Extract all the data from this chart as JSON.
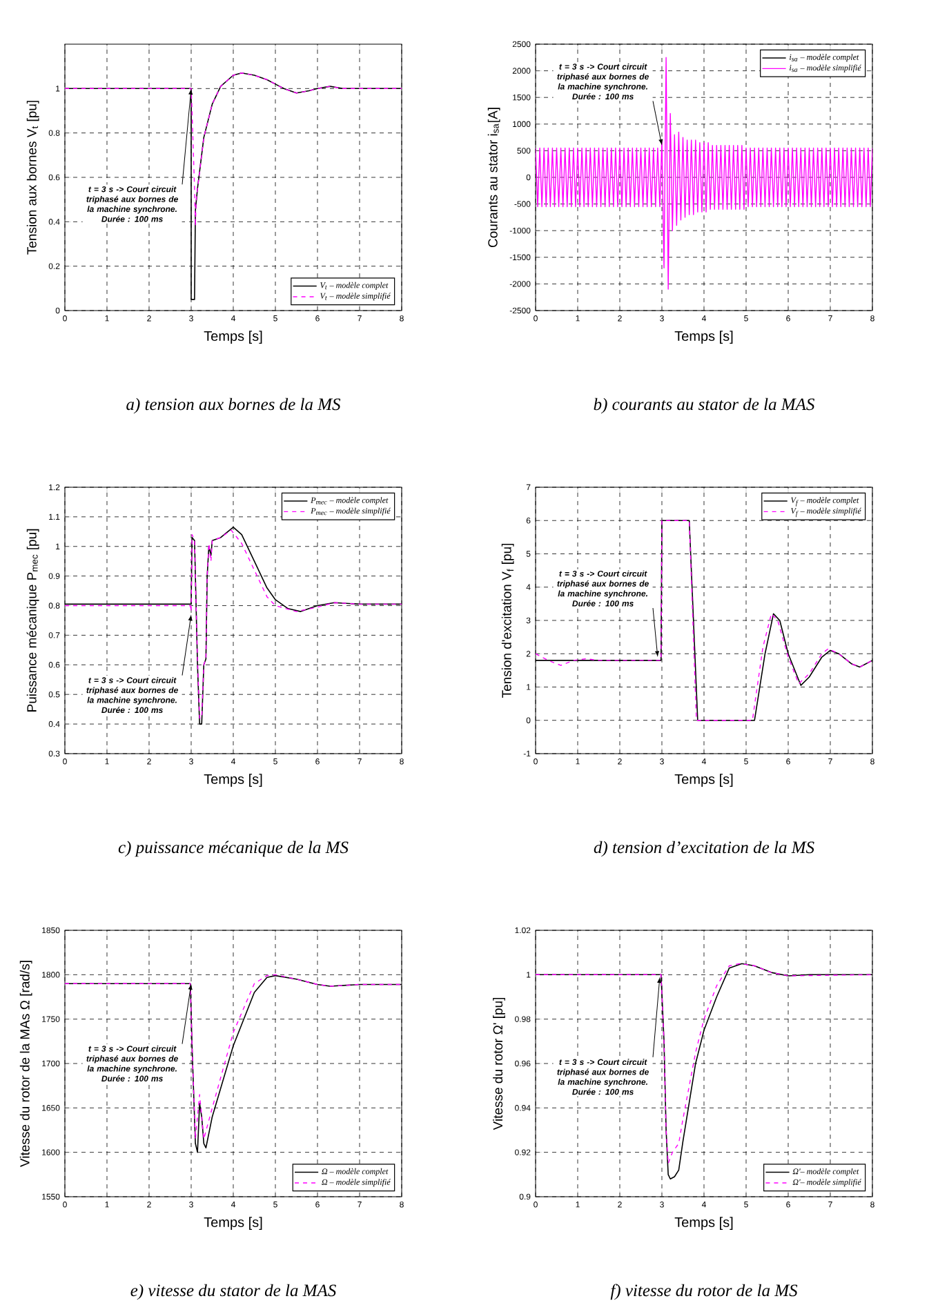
{
  "chart_data": [
    {
      "type": "line",
      "title": "a) tension aux bornes de la MS",
      "xlabel": "Temps  [s]",
      "ylabel": "Tension aux bornes  V$_{t}$ [pu]",
      "xlim": [
        0,
        8
      ],
      "xticks": [
        0,
        1,
        2,
        3,
        4,
        5,
        6,
        7,
        8
      ],
      "ylim": [
        0,
        1.2
      ],
      "yticks": [
        0,
        0.2,
        0.4,
        0.6,
        0.8,
        1
      ],
      "grid": true,
      "legend": "bottom right",
      "annotations": [
        {
          "text": "t = 3 s -> Court circuit triphasé aux bornes de la machine synchrone. Durée : 100 ms",
          "x": 3,
          "y": 1
        }
      ],
      "series": [
        {
          "name": "V$_{t}$ – modèle complet",
          "color": "#000000",
          "line_style": "solid",
          "x": [
            0,
            1,
            2,
            2.98,
            3.0,
            3.0,
            3.08,
            3.1,
            3.15,
            3.3,
            3.5,
            3.7,
            4.0,
            4.2,
            4.5,
            4.8,
            5.0,
            5.2,
            5.5,
            5.8,
            6.0,
            6.3,
            6.6,
            7,
            8
          ],
          "values": [
            1,
            1,
            1,
            1,
            1,
            0.05,
            0.05,
            0.45,
            0.55,
            0.78,
            0.93,
            1.01,
            1.06,
            1.07,
            1.06,
            1.04,
            1.02,
            1.0,
            0.98,
            0.99,
            1.0,
            1.01,
            1.0,
            1.0,
            1.0
          ]
        },
        {
          "name": "V$_{t}$ – modèle simplifié",
          "color": "#ff00ff",
          "line_style": "dashed",
          "x": [
            0,
            1,
            2,
            2.98,
            3.0,
            3.02,
            3.08,
            3.1,
            3.12,
            3.3,
            3.5,
            3.7,
            4.0,
            4.2,
            4.5,
            4.8,
            5.0,
            5.2,
            5.5,
            5.8,
            6.0,
            6.3,
            6.6,
            7,
            8
          ],
          "values": [
            1,
            1,
            1,
            1,
            1,
            0.9,
            0.55,
            0.38,
            0.5,
            0.78,
            0.93,
            1.01,
            1.06,
            1.07,
            1.06,
            1.04,
            1.02,
            1.0,
            0.98,
            0.99,
            1.0,
            1.01,
            1.0,
            1.0,
            1.0
          ]
        }
      ]
    },
    {
      "type": "line",
      "title": "b) courants au stator de la MAS",
      "xlabel": "Temps  [s]",
      "ylabel": "Courants au stator i$_{sa}$[A]",
      "xlim": [
        0,
        8
      ],
      "xticks": [
        0,
        1,
        2,
        3,
        4,
        5,
        6,
        7,
        8
      ],
      "ylim": [
        -2500,
        2500
      ],
      "yticks": [
        -2500,
        -2000,
        -1500,
        -1000,
        -500,
        0,
        500,
        1000,
        1500,
        2000,
        2500
      ],
      "grid": true,
      "legend": "top right",
      "annotations": [
        {
          "text": "t = 3 s -> Court circuit triphasé aux bornes de la machine synchrone. Durée : 100 ms",
          "x": 3,
          "y": 600
        }
      ],
      "x": [
        0,
        0.05,
        0.1,
        0.15,
        0.2,
        0.25,
        0.3,
        0.35,
        0.4,
        0.45,
        0.5,
        0.55,
        0.6,
        0.65,
        0.7,
        0.75,
        0.8,
        0.85,
        0.9,
        0.95,
        1,
        1.05,
        1.1,
        1.15,
        1.2,
        1.25,
        1.3,
        1.35,
        1.4,
        1.45,
        1.5,
        1.55,
        1.6,
        1.65,
        1.7,
        1.75,
        1.8,
        1.85,
        1.9,
        1.95,
        2,
        2.05,
        2.1,
        2.15,
        2.2,
        2.25,
        2.3,
        2.35,
        2.4,
        2.45,
        2.5,
        2.55,
        2.6,
        2.65,
        2.7,
        2.75,
        2.8,
        2.85,
        2.9,
        2.95,
        3,
        3.05,
        3.1,
        3.15,
        3.2,
        3.25,
        3.3,
        3.35,
        3.4,
        3.45,
        3.5,
        3.55,
        3.6,
        3.65,
        3.7,
        3.75,
        3.8,
        3.85,
        3.9,
        3.95,
        4,
        4.05,
        4.1,
        4.15,
        4.2,
        4.25,
        4.3,
        4.35,
        4.4,
        4.45,
        4.5,
        4.55,
        4.6,
        4.65,
        4.7,
        4.75,
        4.8,
        4.85,
        4.9,
        4.95,
        5,
        5.05,
        5.1,
        5.15,
        5.2,
        5.25,
        5.3,
        5.35,
        5.4,
        5.45,
        5.5,
        5.55,
        5.6,
        5.65,
        5.7,
        5.75,
        5.8,
        5.85,
        5.9,
        5.95,
        6,
        6.05,
        6.1,
        6.15,
        6.2,
        6.25,
        6.3,
        6.35,
        6.4,
        6.45,
        6.5,
        6.55,
        6.6,
        6.65,
        6.7,
        6.75,
        6.8,
        6.85,
        6.9,
        6.95,
        7,
        7.05,
        7.1,
        7.15,
        7.2,
        7.25,
        7.3,
        7.35,
        7.4,
        7.45,
        7.5,
        7.55,
        7.6,
        7.65,
        7.7,
        7.75,
        7.8,
        7.85,
        7.9,
        7.95,
        8
      ],
      "series": [
        {
          "name": "i$_{sa}$ – modèle complet",
          "color": "#000000",
          "line_style": "solid",
          "values": [
            null,
            null,
            null,
            null,
            null,
            null,
            null,
            null,
            null,
            null,
            null,
            null,
            null,
            null,
            null,
            null,
            null,
            null,
            null,
            null,
            null,
            null,
            null,
            null,
            null,
            null,
            null,
            null,
            null,
            null,
            null,
            null,
            null,
            null,
            null,
            null,
            null,
            null,
            null,
            null,
            null,
            null,
            null,
            null,
            null,
            null,
            null,
            null,
            null,
            null,
            null,
            null,
            null,
            null,
            null,
            null,
            null,
            null,
            null,
            null,
            null,
            null,
            null,
            null,
            null,
            null,
            null,
            null,
            null,
            null,
            null,
            null,
            null,
            null,
            null,
            null,
            null,
            null,
            null,
            null,
            null,
            null,
            null,
            null,
            null,
            null,
            null,
            null,
            null,
            null,
            null,
            null,
            null,
            null,
            null,
            null,
            null,
            null,
            null,
            null,
            null,
            null,
            null,
            null,
            null,
            null,
            null,
            null,
            null,
            null,
            null,
            null,
            null,
            null,
            null,
            null,
            null,
            null,
            null,
            null,
            null,
            null,
            null,
            null,
            null,
            null,
            null,
            null,
            null,
            null,
            null,
            null,
            null,
            null,
            null,
            null,
            null,
            null,
            null,
            null,
            null,
            null,
            null,
            null,
            null,
            null,
            null,
            null,
            null,
            null,
            null,
            null,
            null,
            null,
            null,
            null,
            null,
            null,
            null,
            null,
            null
          ]
        },
        {
          "name": "i$_{sa}$ – modèle simplifié",
          "color": "#ff00ff",
          "line_style": "solid",
          "values": [
            550,
            -550,
            550,
            -550,
            550,
            -550,
            550,
            -550,
            550,
            -550,
            550,
            -550,
            550,
            -550,
            550,
            -550,
            550,
            -550,
            550,
            -550,
            550,
            -550,
            550,
            -550,
            550,
            -550,
            550,
            -550,
            550,
            -550,
            550,
            -550,
            550,
            -550,
            550,
            -550,
            550,
            -550,
            550,
            -550,
            550,
            -550,
            550,
            -550,
            550,
            -550,
            550,
            -550,
            550,
            -550,
            550,
            -550,
            550,
            -550,
            550,
            -550,
            550,
            -550,
            550,
            -550,
            700,
            -1700,
            2250,
            -2100,
            1200,
            -1000,
            800,
            -900,
            850,
            -800,
            750,
            -750,
            700,
            -700,
            700,
            -700,
            700,
            -650,
            650,
            -650,
            650,
            -650,
            650,
            -600,
            600,
            -600,
            600,
            -600,
            600,
            -600,
            600,
            -600,
            600,
            -600,
            600,
            -600,
            600,
            -600,
            600,
            -600,
            550,
            -550,
            550,
            -550,
            550,
            -550,
            550,
            -550,
            550,
            -550,
            550,
            -550,
            550,
            -550,
            550,
            -550,
            550,
            -550,
            550,
            -550,
            550,
            -550,
            550,
            -550,
            550,
            -550,
            550,
            -550,
            550,
            -550,
            550,
            -550,
            550,
            -550,
            550,
            -550,
            550,
            -550,
            550,
            -550,
            550,
            -550,
            550,
            -550,
            550,
            -550,
            550,
            -550,
            550,
            -550,
            550,
            -550,
            550,
            -550,
            550,
            -550,
            550,
            -550,
            550,
            -550,
            550
          ]
        }
      ]
    },
    {
      "type": "line",
      "title": "c) puissance mécanique de la MS",
      "xlabel": "Temps  [s]",
      "ylabel": "Puissance mécanique  P$_{mec}$ [pu]",
      "xlim": [
        0,
        8
      ],
      "xticks": [
        0,
        1,
        2,
        3,
        4,
        5,
        6,
        7,
        8
      ],
      "ylim": [
        0.3,
        1.2
      ],
      "yticks": [
        0.3,
        0.4,
        0.5,
        0.6,
        0.7,
        0.8,
        0.9,
        1,
        1.1,
        1.2
      ],
      "grid": true,
      "legend": "top right",
      "annotations": [
        {
          "text": "t = 3 s -> Court circuit triphasé aux bornes de la machine synchrone. Durée : 100 ms",
          "x": 3,
          "y": 0.77
        }
      ],
      "series": [
        {
          "name": "P$_{mec}$ – modèle complet",
          "color": "#000000",
          "line_style": "solid",
          "x": [
            0,
            1,
            2,
            2.98,
            3.0,
            3.02,
            3.08,
            3.1,
            3.15,
            3.2,
            3.25,
            3.3,
            3.35,
            3.38,
            3.42,
            3.47,
            3.5,
            3.7,
            4.0,
            4.2,
            4.5,
            4.8,
            5.0,
            5.3,
            5.6,
            6.0,
            6.4,
            7.0,
            8
          ],
          "values": [
            0.805,
            0.805,
            0.805,
            0.805,
            0.805,
            1.03,
            1.02,
            0.9,
            0.6,
            0.4,
            0.4,
            0.6,
            0.62,
            0.9,
            1.0,
            0.97,
            1.02,
            1.03,
            1.065,
            1.04,
            0.95,
            0.86,
            0.82,
            0.79,
            0.78,
            0.8,
            0.81,
            0.805,
            0.805
          ]
        },
        {
          "name": "P$_{mec}$ – modèle simplifié",
          "color": "#ff00ff",
          "line_style": "dashed",
          "x": [
            0,
            1,
            2,
            2.98,
            3.0,
            3.02,
            3.08,
            3.1,
            3.15,
            3.2,
            3.25,
            3.3,
            3.35,
            3.38,
            3.42,
            3.47,
            3.5,
            3.7,
            3.95,
            4.2,
            4.5,
            4.8,
            5.0,
            5.5,
            6.0,
            6.4,
            7.0,
            8
          ],
          "values": [
            0.8,
            0.8,
            0.8,
            0.8,
            0.78,
            1.04,
            1.02,
            0.9,
            0.62,
            0.42,
            0.42,
            0.6,
            0.62,
            0.9,
            1.01,
            0.95,
            1.02,
            1.03,
            1.055,
            1.01,
            0.92,
            0.83,
            0.8,
            0.78,
            0.795,
            0.81,
            0.805,
            0.805
          ]
        }
      ]
    },
    {
      "type": "line",
      "title": "d) tension d’excitation de la MS",
      "xlabel": "Temps  [s]",
      "ylabel": "Tension d'excitation  V$_{f}$ [pu]",
      "xlim": [
        0,
        8
      ],
      "xticks": [
        0,
        1,
        2,
        3,
        4,
        5,
        6,
        7,
        8
      ],
      "ylim": [
        -1,
        7
      ],
      "yticks": [
        -1,
        0,
        1,
        2,
        3,
        4,
        5,
        6,
        7
      ],
      "grid": true,
      "legend": "top right",
      "annotations": [
        {
          "text": "t = 3 s -> Court circuit triphasé aux bornes de la machine synchrone. Durée : 100 ms",
          "x": 2.9,
          "y": 1.9
        }
      ],
      "series": [
        {
          "name": "V$_{f}$ – modèle complet",
          "color": "#000000",
          "line_style": "solid",
          "x": [
            0,
            2.98,
            3.0,
            3.65,
            3.85,
            5.2,
            5.45,
            5.65,
            5.8,
            6.0,
            6.3,
            6.5,
            6.8,
            7.0,
            7.2,
            7.5,
            7.7,
            8
          ],
          "values": [
            1.8,
            1.8,
            6,
            6,
            0,
            0,
            2,
            3.2,
            3.0,
            2.0,
            1.05,
            1.3,
            1.9,
            2.1,
            2.0,
            1.7,
            1.6,
            1.8
          ]
        },
        {
          "name": "V$_{f}$ – modèle simplifié",
          "color": "#ff00ff",
          "line_style": "dashed",
          "x": [
            0,
            0.3,
            0.6,
            0.9,
            1.2,
            1.5,
            2.98,
            3.0,
            3.65,
            3.82,
            5.15,
            5.4,
            5.6,
            5.75,
            6.0,
            6.25,
            6.5,
            6.8,
            6.95,
            7.2,
            7.5,
            7.7,
            8
          ],
          "values": [
            2.0,
            1.8,
            1.65,
            1.8,
            1.85,
            1.8,
            1.8,
            6,
            6,
            0,
            0,
            2.2,
            3.2,
            3.0,
            1.9,
            1.1,
            1.4,
            2.0,
            2.15,
            2.0,
            1.7,
            1.6,
            1.8
          ]
        }
      ]
    },
    {
      "type": "line",
      "title": "e) vitesse du stator de la MAS",
      "xlabel": "Temps  [s]",
      "ylabel": "Vitesse du rotor de la MAs Ω [rad/s]",
      "xlim": [
        0,
        8
      ],
      "xticks": [
        0,
        1,
        2,
        3,
        4,
        5,
        6,
        7,
        8
      ],
      "ylim": [
        1550,
        1850
      ],
      "yticks": [
        1550,
        1600,
        1650,
        1700,
        1750,
        1800,
        1850
      ],
      "grid": true,
      "legend": "bottom right",
      "annotations": [
        {
          "text": "t = 3 s -> Court circuit triphasé aux bornes de la machine synchrone. Durée : 100 ms",
          "x": 3,
          "y": 1790
        }
      ],
      "series": [
        {
          "name": "Ω – modèle complet",
          "color": "#000000",
          "line_style": "solid",
          "x": [
            0,
            2.98,
            3.02,
            3.1,
            3.15,
            3.2,
            3.25,
            3.3,
            3.35,
            3.5,
            4.0,
            4.5,
            4.8,
            5.0,
            5.5,
            6.0,
            6.3,
            7.0,
            8
          ],
          "values": [
            1790,
            1790,
            1720,
            1610,
            1600,
            1655,
            1640,
            1610,
            1605,
            1640,
            1720,
            1780,
            1797,
            1799,
            1795,
            1789,
            1787,
            1789,
            1789
          ]
        },
        {
          "name": "Ω – modèle simplifié",
          "color": "#ff00ff",
          "line_style": "dashed",
          "x": [
            0,
            2.98,
            3.02,
            3.1,
            3.2,
            3.3,
            3.5,
            4.0,
            4.5,
            4.8,
            5.0,
            5.5,
            6.0,
            6.3,
            7,
            8
          ],
          "values": [
            1790,
            1790,
            1720,
            1615,
            1665,
            1615,
            1650,
            1735,
            1790,
            1799,
            1800,
            1795,
            1789,
            1787,
            1789,
            1789
          ]
        }
      ]
    },
    {
      "type": "line",
      "title": "f) vitesse du rotor de la MS",
      "xlabel": "Temps  [s]",
      "ylabel": "Vitesse du rotor   Ω' [pu]",
      "xlim": [
        0,
        8
      ],
      "xticks": [
        0,
        1,
        2,
        3,
        4,
        5,
        6,
        7,
        8
      ],
      "ylim": [
        0.9,
        1.02
      ],
      "yticks": [
        0.9,
        0.92,
        0.94,
        0.96,
        0.98,
        1,
        1.02
      ],
      "grid": true,
      "legend": "bottom right",
      "annotations": [
        {
          "text": "t = 3 s -> Court circuit triphasé aux bornes de la machine synchrone. Durée : 100 ms",
          "x": 2.95,
          "y": 0.999
        }
      ],
      "series": [
        {
          "name": "Ω'– modèle complet",
          "color": "#000000",
          "line_style": "solid",
          "x": [
            0,
            2.98,
            3.05,
            3.1,
            3.15,
            3.2,
            3.3,
            3.4,
            3.5,
            3.8,
            4.0,
            4.3,
            4.6,
            4.9,
            5.2,
            5.6,
            6.0,
            6.5,
            8
          ],
          "values": [
            1.0,
            1.0,
            0.97,
            0.93,
            0.91,
            0.908,
            0.909,
            0.912,
            0.925,
            0.96,
            0.975,
            0.99,
            1.003,
            1.005,
            1.004,
            1.001,
            0.9995,
            1.0,
            1.0
          ]
        },
        {
          "name": "Ω'– modèle simplifié",
          "color": "#ff00ff",
          "line_style": "dashed",
          "x": [
            0,
            2.98,
            3.05,
            3.1,
            3.15,
            3.25,
            3.4,
            3.5,
            3.8,
            4.0,
            4.3,
            4.6,
            4.85,
            5.2,
            5.6,
            6.0,
            8
          ],
          "values": [
            1.0,
            1.0,
            0.97,
            0.93,
            0.915,
            0.92,
            0.924,
            0.935,
            0.965,
            0.98,
            0.995,
            1.004,
            1.005,
            1.004,
            1.001,
            0.9995,
            1.0
          ]
        }
      ]
    }
  ]
}
